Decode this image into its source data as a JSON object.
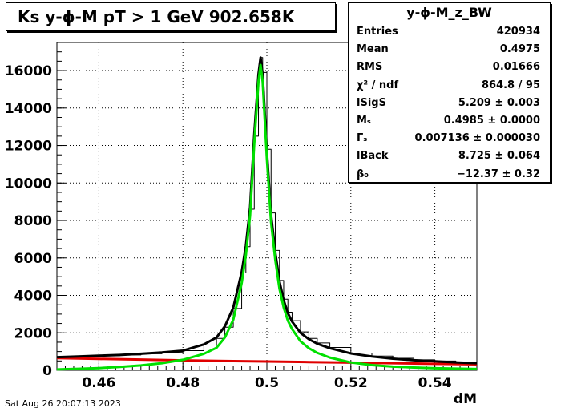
{
  "title": "Ks y-ϕ-M pT > 1 GeV  902.658K",
  "stats": {
    "name": "y-ϕ-M_z_BW",
    "rows": [
      {
        "key": "Entries",
        "value": "420934"
      },
      {
        "key": "Mean",
        "value": "0.4975"
      },
      {
        "key": "RMS",
        "value": "0.01666"
      },
      {
        "key": "χ² / ndf",
        "value": "864.8 / 95"
      },
      {
        "key": "lSigS",
        "value": "5.209 ± 0.003"
      },
      {
        "key": "Mₛ",
        "value": "0.4985 ± 0.0000"
      },
      {
        "key": "Γₛ",
        "value": "0.007136 ± 0.000030"
      },
      {
        "key": "lBack",
        "value": "8.725 ± 0.064"
      },
      {
        "key": "β₀",
        "value": "−12.37 ± 0.32"
      }
    ]
  },
  "footer": "Sat Aug 26 20:07:13 2023",
  "colors": {
    "histogram": "#000000",
    "total_fit": "#000000",
    "signal": "#00e000",
    "background": "#e00000"
  },
  "chart_data": {
    "type": "line",
    "xlabel": "dM",
    "ylabel": "",
    "xlim": [
      0.45,
      0.55
    ],
    "ylim": [
      0,
      17500
    ],
    "xticks": [
      0.46,
      0.48,
      0.5,
      0.52,
      0.54
    ],
    "xtick_labels": [
      "0.46",
      "0.48",
      "0.5",
      "0.52",
      "0.54"
    ],
    "yticks": [
      0,
      2000,
      4000,
      6000,
      8000,
      10000,
      12000,
      14000,
      16000
    ],
    "ytick_labels": [
      "0",
      "2000",
      "4000",
      "6000",
      "8000",
      "10000",
      "12000",
      "14000",
      "16000"
    ],
    "grid": true,
    "peak": {
      "x": 0.4985,
      "y": 16700
    },
    "series": [
      {
        "key": "histogram",
        "style": "step",
        "x": [
          0.45,
          0.455,
          0.46,
          0.465,
          0.47,
          0.475,
          0.48,
          0.485,
          0.488,
          0.49,
          0.492,
          0.494,
          0.495,
          0.496,
          0.497,
          0.498,
          0.4985,
          0.499,
          0.5,
          0.501,
          0.502,
          0.503,
          0.504,
          0.505,
          0.506,
          0.508,
          0.51,
          0.512,
          0.515,
          0.52,
          0.525,
          0.53,
          0.535,
          0.54,
          0.545,
          0.55
        ],
        "y": [
          700,
          740,
          780,
          820,
          880,
          950,
          1050,
          1350,
          1700,
          2300,
          3300,
          5200,
          6600,
          8600,
          12500,
          15800,
          16700,
          15900,
          11800,
          8400,
          6400,
          4800,
          3800,
          3100,
          2650,
          2050,
          1700,
          1460,
          1220,
          920,
          760,
          640,
          560,
          500,
          440,
          400
        ]
      },
      {
        "key": "total_fit",
        "x": [
          0.45,
          0.455,
          0.46,
          0.465,
          0.47,
          0.475,
          0.48,
          0.485,
          0.488,
          0.49,
          0.492,
          0.494,
          0.495,
          0.496,
          0.497,
          0.498,
          0.4985,
          0.499,
          0.5,
          0.501,
          0.502,
          0.503,
          0.504,
          0.505,
          0.506,
          0.508,
          0.51,
          0.512,
          0.515,
          0.52,
          0.525,
          0.53,
          0.535,
          0.54,
          0.545,
          0.55
        ],
        "y": [
          700,
          740,
          780,
          820,
          880,
          950,
          1050,
          1380,
          1750,
          2350,
          3350,
          5250,
          6650,
          8700,
          12600,
          15800,
          16700,
          15800,
          11700,
          8300,
          6300,
          4750,
          3750,
          3050,
          2600,
          2000,
          1660,
          1420,
          1180,
          900,
          740,
          620,
          540,
          480,
          420,
          380
        ]
      },
      {
        "key": "signal",
        "x": [
          0.45,
          0.455,
          0.46,
          0.465,
          0.47,
          0.475,
          0.48,
          0.485,
          0.488,
          0.49,
          0.492,
          0.494,
          0.495,
          0.496,
          0.497,
          0.498,
          0.4985,
          0.499,
          0.5,
          0.501,
          0.502,
          0.503,
          0.504,
          0.505,
          0.506,
          0.508,
          0.51,
          0.512,
          0.515,
          0.52,
          0.525,
          0.53,
          0.535,
          0.54,
          0.545,
          0.55
        ],
        "y": [
          50,
          80,
          120,
          180,
          260,
          380,
          560,
          880,
          1200,
          1750,
          2700,
          4650,
          6150,
          8250,
          12100,
          15400,
          16300,
          15400,
          11300,
          7900,
          5900,
          4350,
          3350,
          2650,
          2200,
          1550,
          1180,
          930,
          680,
          420,
          280,
          200,
          150,
          110,
          90,
          70
        ]
      },
      {
        "key": "background",
        "x": [
          0.45,
          0.46,
          0.47,
          0.48,
          0.49,
          0.5,
          0.51,
          0.52,
          0.53,
          0.54,
          0.55
        ],
        "y": [
          650,
          610,
          570,
          530,
          500,
          470,
          440,
          410,
          380,
          350,
          320
        ]
      }
    ]
  }
}
